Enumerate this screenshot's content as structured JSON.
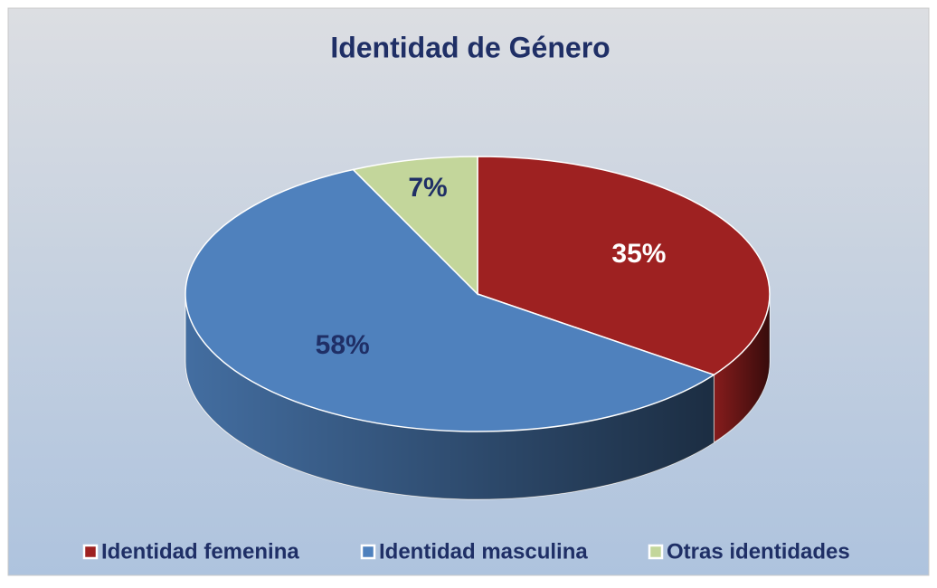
{
  "chart_data": {
    "type": "pie",
    "title": "Identidad de Género",
    "categories": [
      "Identidad femenina",
      "Identidad masculina",
      "Otras identidades"
    ],
    "values": [
      35,
      58,
      7
    ],
    "value_labels": [
      "35%",
      "58%",
      "7%"
    ],
    "colors": [
      "#9e2121",
      "#4f81bd",
      "#c3d69b"
    ],
    "legend": "bottom"
  }
}
